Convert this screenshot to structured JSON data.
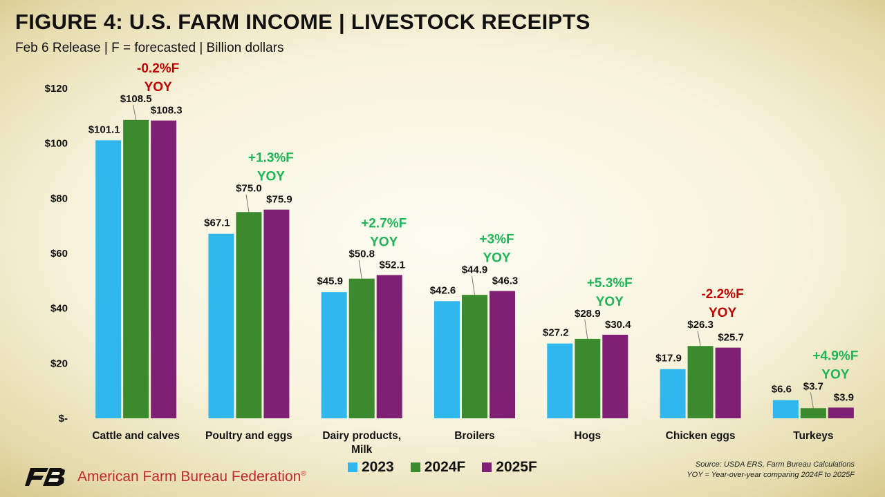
{
  "title": "FIGURE 4: U.S. FARM INCOME | LIVESTOCK RECEIPTS",
  "subtitle": "Feb 6 Release | F = forecasted | Billion dollars",
  "org_name": "American Farm Bureau Federation",
  "org_mark": "®",
  "source_line1": "Source: USDA ERS, Farm Bureau Calculations",
  "source_line2": "YOY = Year-over-year comparing 2024F to 2025F",
  "colors": {
    "2023": "#30b7ee",
    "2024F": "#3c8a2e",
    "2025F": "#7e2074",
    "positive": "#1fb456",
    "negative": "#c00000"
  },
  "chart_data": {
    "type": "bar",
    "ylim": [
      0,
      120
    ],
    "yticks": [
      0,
      20,
      40,
      60,
      80,
      100,
      120
    ],
    "ytick_labels": [
      "$-",
      "$20",
      "$40",
      "$60",
      "$80",
      "$100",
      "$120"
    ],
    "legend_position": "bottom",
    "categories": [
      [
        "Cattle and calves"
      ],
      [
        "Poultry and eggs"
      ],
      [
        "Dairy products,",
        "Milk"
      ],
      [
        "Broilers"
      ],
      [
        "Hogs"
      ],
      [
        "Chicken eggs"
      ],
      [
        "Turkeys"
      ]
    ],
    "series": [
      {
        "name": "2023",
        "color": "#30b7ee",
        "values": [
          101.1,
          67.1,
          45.9,
          42.6,
          27.2,
          17.9,
          6.6
        ],
        "labels": [
          "$101.1",
          "$67.1",
          "$45.9",
          "$42.6",
          "$27.2",
          "$17.9",
          "$6.6"
        ]
      },
      {
        "name": "2024F",
        "color": "#3c8a2e",
        "values": [
          108.5,
          75.0,
          50.8,
          44.9,
          28.9,
          26.3,
          3.7
        ],
        "labels": [
          "$108.5",
          "$75.0",
          "$50.8",
          "$44.9",
          "$28.9",
          "$26.3",
          "$3.7"
        ]
      },
      {
        "name": "2025F",
        "color": "#7e2074",
        "values": [
          108.3,
          75.9,
          52.1,
          46.3,
          30.4,
          25.7,
          3.9
        ],
        "labels": [
          "$108.3",
          "$75.9",
          "$52.1",
          "$46.3",
          "$30.4",
          "$25.7",
          "$3.9"
        ]
      }
    ],
    "yoy": [
      {
        "line1": "-0.2%F",
        "line2": "YOY",
        "sign": "negative"
      },
      {
        "line1": "+1.3%F",
        "line2": "YOY",
        "sign": "positive"
      },
      {
        "line1": "+2.7%F",
        "line2": "YOY",
        "sign": "positive"
      },
      {
        "line1": "+3%F",
        "line2": "YOY",
        "sign": "positive"
      },
      {
        "line1": "+5.3%F",
        "line2": "YOY",
        "sign": "positive"
      },
      {
        "line1": "-2.2%F",
        "line2": "YOY",
        "sign": "negative"
      },
      {
        "line1": "+4.9%F",
        "line2": "YOY",
        "sign": "positive"
      }
    ]
  }
}
